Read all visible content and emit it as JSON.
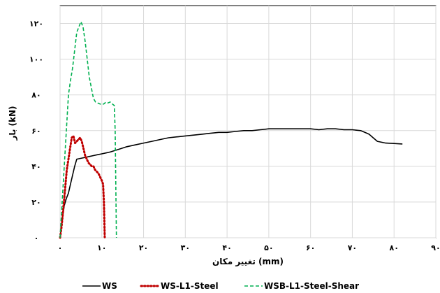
{
  "chart_data": {
    "type": "line",
    "xlabel": "تغییر مکان (mm)",
    "ylabel": "بار (kN)",
    "xlim": [
      0,
      90
    ],
    "ylim": [
      0,
      130
    ],
    "x_ticks": [
      0,
      10,
      20,
      30,
      40,
      50,
      60,
      70,
      80,
      90
    ],
    "y_ticks": [
      0,
      20,
      40,
      60,
      80,
      100,
      120
    ],
    "x_tick_labels": [
      "۰",
      "۱۰",
      "۲۰",
      "۳۰",
      "۴۰",
      "۵۰",
      "۶۰",
      "۷۰",
      "۸۰",
      "۹۰"
    ],
    "y_tick_labels": [
      "۰",
      "۲۰",
      "۴۰",
      "۶۰",
      "۸۰",
      "۱۰۰",
      "۱۲۰"
    ],
    "grid": true,
    "legend_position": "bottom",
    "series": [
      {
        "name": "WS",
        "color": "#000000",
        "style": "solid",
        "points": [
          [
            0,
            0
          ],
          [
            0.5,
            10
          ],
          [
            1,
            18
          ],
          [
            1.5,
            22
          ],
          [
            2,
            25
          ],
          [
            2.5,
            30
          ],
          [
            3,
            35
          ],
          [
            3.5,
            40
          ],
          [
            4,
            44
          ],
          [
            5,
            44.5
          ],
          [
            6,
            45
          ],
          [
            7,
            45.5
          ],
          [
            8,
            46
          ],
          [
            9,
            46.5
          ],
          [
            10,
            47
          ],
          [
            11,
            47.5
          ],
          [
            12,
            48
          ],
          [
            14,
            49.5
          ],
          [
            16,
            51
          ],
          [
            18,
            52
          ],
          [
            20,
            53
          ],
          [
            22,
            54
          ],
          [
            24,
            55
          ],
          [
            26,
            56
          ],
          [
            28,
            56.5
          ],
          [
            30,
            57
          ],
          [
            32,
            57.5
          ],
          [
            34,
            58
          ],
          [
            36,
            58.5
          ],
          [
            38,
            59
          ],
          [
            40,
            59
          ],
          [
            42,
            59.5
          ],
          [
            44,
            60
          ],
          [
            46,
            60
          ],
          [
            48,
            60.5
          ],
          [
            50,
            61
          ],
          [
            52,
            61
          ],
          [
            54,
            61
          ],
          [
            56,
            61
          ],
          [
            58,
            61
          ],
          [
            60,
            61
          ],
          [
            62,
            60.5
          ],
          [
            64,
            61
          ],
          [
            66,
            61
          ],
          [
            68,
            60.5
          ],
          [
            70,
            60.5
          ],
          [
            72,
            60
          ],
          [
            73,
            59
          ],
          [
            74,
            58
          ],
          [
            75,
            56
          ],
          [
            76,
            54
          ],
          [
            78,
            53
          ],
          [
            80,
            52.8
          ],
          [
            82,
            52.5
          ]
        ]
      },
      {
        "name": "WS-L1-Steel",
        "color": "#c00000",
        "style": "dotted",
        "points": [
          [
            0,
            0
          ],
          [
            0.3,
            5
          ],
          [
            0.6,
            12
          ],
          [
            1,
            22
          ],
          [
            1.3,
            30
          ],
          [
            1.6,
            38
          ],
          [
            2,
            44
          ],
          [
            2.4,
            50
          ],
          [
            2.8,
            56
          ],
          [
            3.2,
            57
          ],
          [
            3.6,
            53
          ],
          [
            4,
            54
          ],
          [
            4.4,
            55
          ],
          [
            4.8,
            56
          ],
          [
            5.2,
            54
          ],
          [
            5.6,
            50
          ],
          [
            6,
            46
          ],
          [
            6.4,
            44
          ],
          [
            6.8,
            42
          ],
          [
            7.2,
            41
          ],
          [
            7.6,
            40
          ],
          [
            8,
            40
          ],
          [
            8.4,
            38
          ],
          [
            8.8,
            37
          ],
          [
            9.2,
            36
          ],
          [
            9.6,
            34
          ],
          [
            10,
            32
          ],
          [
            10.3,
            30
          ],
          [
            10.5,
            20
          ],
          [
            10.6,
            10
          ],
          [
            10.7,
            0
          ]
        ]
      },
      {
        "name": "WSB-L1-Steel-Shear",
        "color": "#00b050",
        "style": "dashed",
        "points": [
          [
            0,
            0
          ],
          [
            0.5,
            20
          ],
          [
            1,
            40
          ],
          [
            1.5,
            60
          ],
          [
            2,
            80
          ],
          [
            2.5,
            88
          ],
          [
            3,
            95
          ],
          [
            3.5,
            105
          ],
          [
            4,
            115
          ],
          [
            4.5,
            118
          ],
          [
            5,
            121
          ],
          [
            5.5,
            118
          ],
          [
            6,
            110
          ],
          [
            6.5,
            100
          ],
          [
            7,
            90
          ],
          [
            7.5,
            84
          ],
          [
            8,
            78
          ],
          [
            8.5,
            76
          ],
          [
            9,
            75.5
          ],
          [
            9.5,
            75
          ],
          [
            10,
            74.5
          ],
          [
            10.5,
            75
          ],
          [
            11,
            76
          ],
          [
            11.5,
            75.5
          ],
          [
            12,
            76
          ],
          [
            12.5,
            75
          ],
          [
            13,
            74
          ],
          [
            13.2,
            60
          ],
          [
            13.3,
            40
          ],
          [
            13.4,
            20
          ],
          [
            13.5,
            0
          ]
        ]
      }
    ]
  }
}
